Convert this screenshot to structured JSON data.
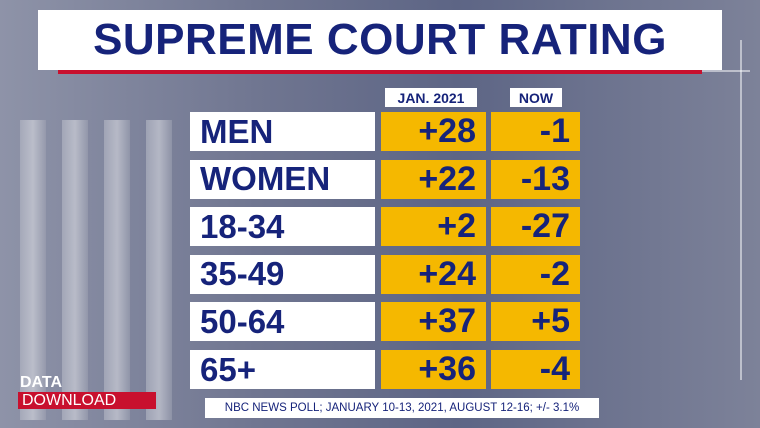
{
  "header": {
    "title": "SUPREME COURT RATING"
  },
  "table": {
    "columns": [
      "JAN. 2021",
      "NOW"
    ],
    "rows": [
      [
        "MEN",
        "+28",
        "-1"
      ],
      [
        "WOMEN",
        "+22",
        "-13"
      ],
      [
        "18-34",
        "+2",
        "-27"
      ],
      [
        "35-49",
        "+24",
        "-2"
      ],
      [
        "50-64",
        "+37",
        "+5"
      ],
      [
        "65+",
        "+36",
        "-4"
      ]
    ]
  },
  "footer": {
    "source": "NBC NEWS POLL; JANUARY 10-13, 2021, AUGUST 12-16; +/- 3.1%"
  },
  "logo": {
    "line1": "DATA",
    "line2": "DOWNLOAD"
  }
}
